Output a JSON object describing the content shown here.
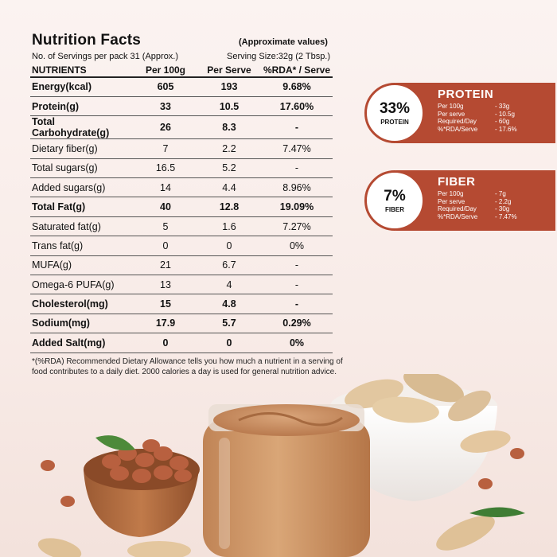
{
  "header": {
    "title": "Nutrition Facts",
    "approx": "(Approximate values)",
    "servings": "No. of Servings per pack 31 (Approx.)",
    "serving_size": "Serving Size:32g (2 Tbsp.)"
  },
  "table": {
    "columns": [
      "NUTRIENTS",
      "Per 100g",
      "Per Serve",
      "%RDA* / Serve"
    ],
    "rows": [
      {
        "name": "Energy(kcal)",
        "per100": "605",
        "serve": "193",
        "rda": "9.68%",
        "bold": true
      },
      {
        "name": "Protein(g)",
        "per100": "33",
        "serve": "10.5",
        "rda": "17.60%",
        "bold": true
      },
      {
        "name": "Total Carbohydrate(g)",
        "per100": "26",
        "serve": "8.3",
        "rda": "-",
        "bold": true
      },
      {
        "name": "Dietary fiber(g)",
        "per100": "7",
        "serve": "2.2",
        "rda": "7.47%",
        "bold": false
      },
      {
        "name": "Total sugars(g)",
        "per100": "16.5",
        "serve": "5.2",
        "rda": "-",
        "bold": false
      },
      {
        "name": "Added sugars(g)",
        "per100": "14",
        "serve": "4.4",
        "rda": "8.96%",
        "bold": false
      },
      {
        "name": "Total Fat(g)",
        "per100": "40",
        "serve": "12.8",
        "rda": "19.09%",
        "bold": true
      },
      {
        "name": "Saturated fat(g)",
        "per100": "5",
        "serve": "1.6",
        "rda": "7.27%",
        "bold": false
      },
      {
        "name": "Trans fat(g)",
        "per100": "0",
        "serve": "0",
        "rda": "0%",
        "bold": false
      },
      {
        "name": "MUFA(g)",
        "per100": "21",
        "serve": "6.7",
        "rda": "-",
        "bold": false
      },
      {
        "name": "Omega-6 PUFA(g)",
        "per100": "13",
        "serve": "4",
        "rda": "-",
        "bold": false
      },
      {
        "name": "Cholesterol(mg)",
        "per100": "15",
        "serve": "4.8",
        "rda": "-",
        "bold": true
      },
      {
        "name": "Sodium(mg)",
        "per100": "17.9",
        "serve": "5.7",
        "rda": "0.29%",
        "bold": true
      },
      {
        "name": "Added Salt(mg)",
        "per100": "0",
        "serve": "0",
        "rda": "0%",
        "bold": true
      }
    ]
  },
  "footnote": "*(%RDA) Recommended Dietary Allowance tells you how much a nutrient in a serving of food contributes to a daily diet. 2000 calories a day is used for general nutrition advice.",
  "protein": {
    "percent": "33%",
    "label": "PROTEIN",
    "heading": "PROTEIN",
    "rows": [
      {
        "k": "Per 100g",
        "v": "- 33g"
      },
      {
        "k": "Per serve",
        "v": "- 10.5g"
      },
      {
        "k": "Required/Day",
        "v": "- 60g"
      },
      {
        "k": "%*RDA/Serve",
        "v": "- 17.6%"
      }
    ]
  },
  "fiber": {
    "percent": "7%",
    "label": "FIBER",
    "heading": "FIBER",
    "rows": [
      {
        "k": "Per 100g",
        "v": "- 7g"
      },
      {
        "k": "Per serve",
        "v": "- 2.2g"
      },
      {
        "k": "Required/Day",
        "v": "- 30g"
      },
      {
        "k": "%*RDA/Serve",
        "v": "- 7.47%"
      }
    ]
  },
  "colors": {
    "accent": "#b54a32",
    "background": "#fbf3f1",
    "peanut_butter": "#c98f62"
  }
}
